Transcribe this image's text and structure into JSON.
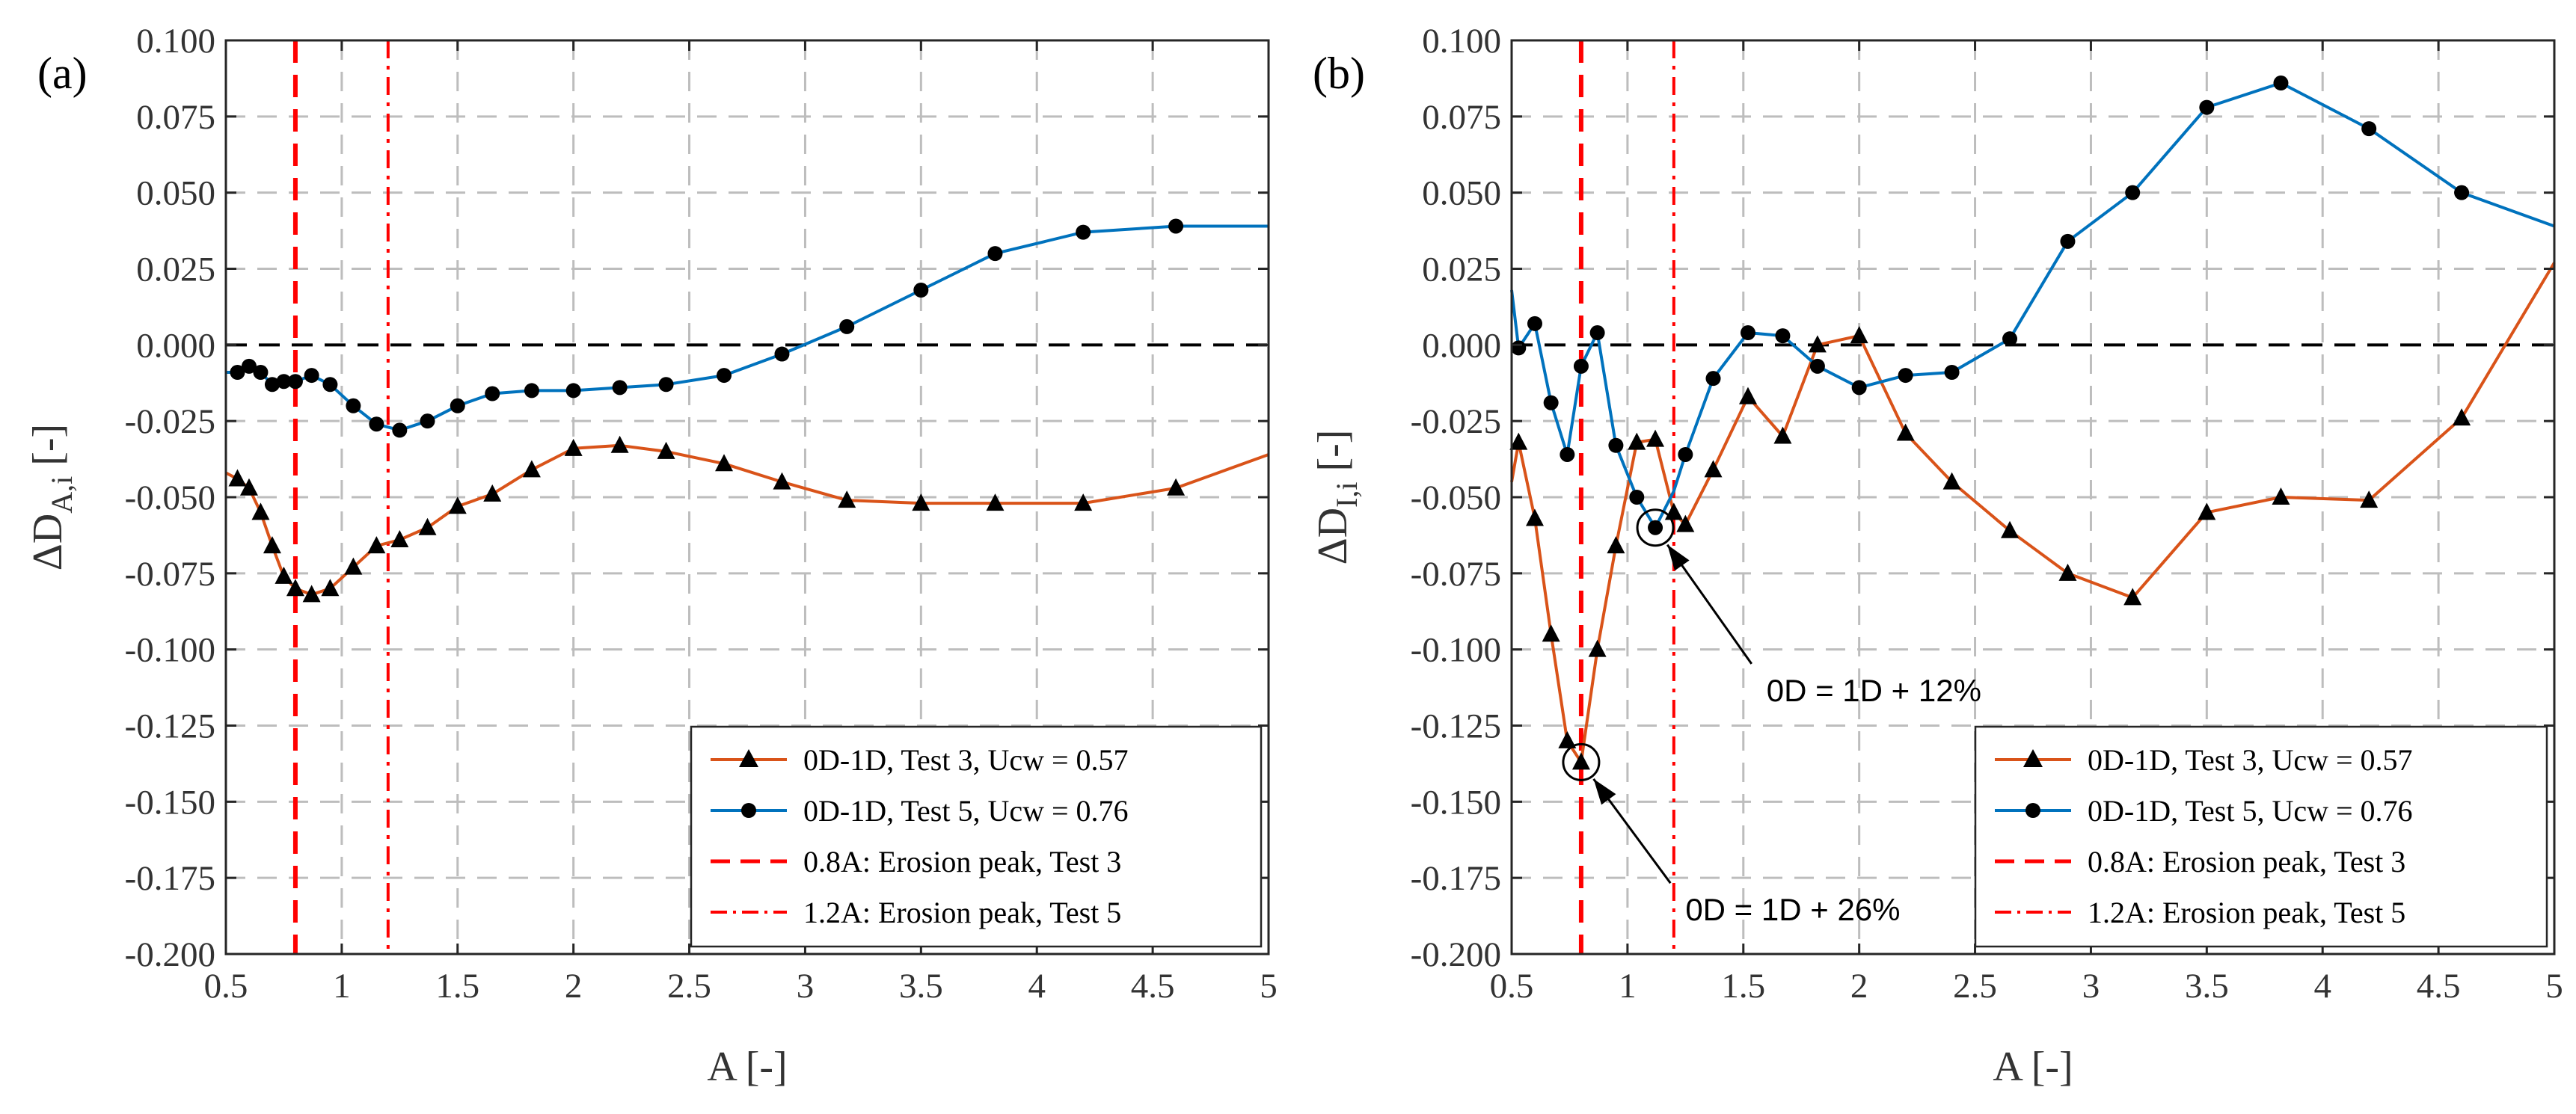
{
  "chart_data": [
    {
      "type": "line",
      "panel_label": "(a)",
      "xlabel": "A [-]",
      "ylabel": "ΔD",
      "ylabel_sub": "A,i",
      "ylabel_unit": "[-]",
      "xlim": [
        0.5,
        5
      ],
      "ylim": [
        -0.2,
        0.1
      ],
      "xticks": [
        0.5,
        1,
        1.5,
        2,
        2.5,
        3,
        3.5,
        4,
        4.5,
        5
      ],
      "xtick_labels": [
        "0.5",
        "1",
        "1.5",
        "2",
        "2.5",
        "3",
        "3.5",
        "4",
        "4.5",
        "5"
      ],
      "yticks": [
        0.1,
        0.075,
        0.05,
        0.025,
        0,
        -0.025,
        -0.05,
        -0.075,
        -0.1,
        -0.125,
        -0.15,
        -0.175,
        -0.2
      ],
      "ytick_labels": [
        "0.100",
        "0.075",
        "0.050",
        "0.025",
        "0.000",
        "-0.025",
        "-0.050",
        "-0.075",
        "-0.100",
        "-0.125",
        "-0.150",
        "-0.175",
        "-0.200"
      ],
      "grid": true,
      "legend_position": "bottom-right",
      "series": [
        {
          "name": "0D-1D, Test 3, Ucw = 0.57",
          "color": "#d95319",
          "marker": "triangle",
          "line_x": [
            0.5,
            0.55,
            0.6,
            0.65,
            0.7,
            0.75,
            0.8,
            0.87,
            0.95,
            1.05,
            1.15,
            1.25,
            1.37,
            1.5,
            1.65,
            1.82,
            2.0,
            2.2,
            2.4,
            2.65,
            2.9,
            3.18,
            3.5,
            3.82,
            4.2,
            4.6,
            5.0
          ],
          "line_y": [
            -0.042,
            -0.044,
            -0.047,
            -0.055,
            -0.066,
            -0.076,
            -0.08,
            -0.082,
            -0.08,
            -0.073,
            -0.066,
            -0.064,
            -0.06,
            -0.053,
            -0.049,
            -0.041,
            -0.034,
            -0.033,
            -0.035,
            -0.039,
            -0.045,
            -0.051,
            -0.052,
            -0.052,
            -0.052,
            -0.047,
            -0.036
          ],
          "marker_x": [
            0.55,
            0.6,
            0.65,
            0.7,
            0.75,
            0.8,
            0.87,
            0.95,
            1.05,
            1.15,
            1.25,
            1.37,
            1.5,
            1.65,
            1.82,
            2.0,
            2.2,
            2.4,
            2.65,
            2.9,
            3.18,
            3.5,
            3.82,
            4.2,
            4.6
          ],
          "marker_y": [
            -0.044,
            -0.047,
            -0.055,
            -0.066,
            -0.076,
            -0.08,
            -0.082,
            -0.08,
            -0.073,
            -0.066,
            -0.064,
            -0.06,
            -0.053,
            -0.049,
            -0.041,
            -0.034,
            -0.033,
            -0.035,
            -0.039,
            -0.045,
            -0.051,
            -0.052,
            -0.052,
            -0.052,
            -0.047
          ]
        },
        {
          "name": "0D-1D, Test 5, Ucw = 0.76",
          "color": "#0072bd",
          "marker": "circle",
          "line_x": [
            0.5,
            0.55,
            0.6,
            0.65,
            0.7,
            0.75,
            0.8,
            0.87,
            0.95,
            1.05,
            1.15,
            1.25,
            1.37,
            1.5,
            1.65,
            1.82,
            2.0,
            2.2,
            2.4,
            2.65,
            2.9,
            3.18,
            3.5,
            3.82,
            4.2,
            4.6,
            5.0
          ],
          "line_y": [
            -0.009,
            -0.009,
            -0.007,
            -0.009,
            -0.013,
            -0.012,
            -0.012,
            -0.01,
            -0.013,
            -0.02,
            -0.026,
            -0.028,
            -0.025,
            -0.02,
            -0.016,
            -0.015,
            -0.015,
            -0.014,
            -0.013,
            -0.01,
            -0.003,
            0.006,
            0.018,
            0.03,
            0.037,
            0.039,
            0.039
          ],
          "marker_x": [
            0.55,
            0.6,
            0.65,
            0.7,
            0.75,
            0.8,
            0.87,
            0.95,
            1.05,
            1.15,
            1.25,
            1.37,
            1.5,
            1.65,
            1.82,
            2.0,
            2.2,
            2.4,
            2.65,
            2.9,
            3.18,
            3.5,
            3.82,
            4.2,
            4.6
          ],
          "marker_y": [
            -0.009,
            -0.007,
            -0.009,
            -0.013,
            -0.012,
            -0.012,
            -0.01,
            -0.013,
            -0.02,
            -0.026,
            -0.028,
            -0.025,
            -0.02,
            -0.016,
            -0.015,
            -0.015,
            -0.014,
            -0.013,
            -0.01,
            -0.003,
            0.006,
            0.018,
            0.03,
            0.037,
            0.039
          ]
        },
        {
          "name": "0.8A: Erosion peak, Test 3",
          "color": "#ff0000",
          "style": "dashed",
          "vline_x": 0.8
        },
        {
          "name": "1.2A: Erosion peak, Test 5",
          "color": "#ff0000",
          "style": "dashdot",
          "vline_x": 1.2
        }
      ],
      "annotations": []
    },
    {
      "type": "line",
      "panel_label": "(b)",
      "xlabel": "A [-]",
      "ylabel": "ΔD",
      "ylabel_sub": "I,i",
      "ylabel_unit": "[-]",
      "xlim": [
        0.5,
        5
      ],
      "ylim": [
        -0.2,
        0.1
      ],
      "xticks": [
        0.5,
        1,
        1.5,
        2,
        2.5,
        3,
        3.5,
        4,
        4.5,
        5
      ],
      "xtick_labels": [
        "0.5",
        "1",
        "1.5",
        "2",
        "2.5",
        "3",
        "3.5",
        "4",
        "4.5",
        "5"
      ],
      "yticks": [
        0.1,
        0.075,
        0.05,
        0.025,
        0,
        -0.025,
        -0.05,
        -0.075,
        -0.1,
        -0.125,
        -0.15,
        -0.175,
        -0.2
      ],
      "ytick_labels": [
        "0.100",
        "0.075",
        "0.050",
        "0.025",
        "0.000",
        "-0.025",
        "-0.050",
        "-0.075",
        "-0.100",
        "-0.125",
        "-0.150",
        "-0.175",
        "-0.200"
      ],
      "grid": true,
      "legend_position": "bottom-right",
      "series": [
        {
          "name": "0D-1D, Test 3, Ucw = 0.57",
          "color": "#d95319",
          "marker": "triangle",
          "line_x": [
            0.5,
            0.53,
            0.6,
            0.67,
            0.74,
            0.8,
            0.87,
            0.95,
            1.04,
            1.12,
            1.2,
            1.25,
            1.37,
            1.52,
            1.67,
            1.82,
            2.0,
            2.2,
            2.4,
            2.65,
            2.9,
            3.18,
            3.5,
            3.82,
            4.2,
            4.6,
            5.0
          ],
          "line_y": [
            -0.045,
            -0.032,
            -0.057,
            -0.095,
            -0.13,
            -0.137,
            -0.1,
            -0.066,
            -0.032,
            -0.031,
            -0.055,
            -0.059,
            -0.041,
            -0.017,
            -0.03,
            0.0,
            0.003,
            -0.029,
            -0.045,
            -0.061,
            -0.075,
            -0.083,
            -0.055,
            -0.05,
            -0.051,
            -0.024,
            0.027
          ],
          "marker_x": [
            0.53,
            0.6,
            0.67,
            0.74,
            0.8,
            0.87,
            0.95,
            1.04,
            1.12,
            1.2,
            1.25,
            1.37,
            1.52,
            1.67,
            1.82,
            2.0,
            2.2,
            2.4,
            2.65,
            2.9,
            3.18,
            3.5,
            3.82,
            4.2,
            4.6
          ],
          "marker_y": [
            -0.032,
            -0.057,
            -0.095,
            -0.13,
            -0.137,
            -0.1,
            -0.066,
            -0.032,
            -0.031,
            -0.055,
            -0.059,
            -0.041,
            -0.017,
            -0.03,
            0.0,
            0.003,
            -0.029,
            -0.045,
            -0.061,
            -0.075,
            -0.083,
            -0.055,
            -0.05,
            -0.051,
            -0.024
          ]
        },
        {
          "name": "0D-1D, Test 5, Ucw = 0.76",
          "color": "#0072bd",
          "marker": "circle",
          "line_x": [
            0.5,
            0.53,
            0.6,
            0.67,
            0.74,
            0.8,
            0.87,
            0.95,
            1.04,
            1.12,
            1.2,
            1.25,
            1.37,
            1.52,
            1.67,
            1.82,
            2.0,
            2.2,
            2.4,
            2.65,
            2.9,
            3.18,
            3.5,
            3.82,
            4.2,
            4.6,
            5.0
          ],
          "line_y": [
            0.018,
            -0.001,
            0.007,
            -0.019,
            -0.036,
            -0.007,
            0.004,
            -0.033,
            -0.05,
            -0.06,
            -0.048,
            -0.036,
            -0.011,
            0.004,
            0.003,
            -0.007,
            -0.014,
            -0.01,
            -0.009,
            0.002,
            0.034,
            0.05,
            0.078,
            0.086,
            0.071,
            0.05,
            0.039
          ],
          "marker_x": [
            0.53,
            0.6,
            0.67,
            0.74,
            0.8,
            0.87,
            0.95,
            1.04,
            1.12,
            1.25,
            1.37,
            1.52,
            1.67,
            1.82,
            2.0,
            2.2,
            2.4,
            2.65,
            2.9,
            3.18,
            3.5,
            3.82,
            4.2,
            4.6
          ],
          "marker_y": [
            -0.001,
            0.007,
            -0.019,
            -0.036,
            -0.007,
            0.004,
            -0.033,
            -0.05,
            -0.06,
            -0.036,
            -0.011,
            0.004,
            0.003,
            -0.007,
            -0.014,
            -0.01,
            -0.009,
            0.002,
            0.034,
            0.05,
            0.078,
            0.086,
            0.071,
            0.05
          ]
        },
        {
          "name": "0.8A: Erosion peak, Test 3",
          "color": "#ff0000",
          "style": "dashed",
          "vline_x": 0.8
        },
        {
          "name": "1.2A: Erosion peak, Test 5",
          "color": "#ff0000",
          "style": "dashdot",
          "vline_x": 1.2
        }
      ],
      "annotations": [
        {
          "text": "0D = 1D + 12%",
          "point_x": 1.12,
          "point_y": -0.06,
          "text_x": 1.6,
          "text_y": -0.117
        },
        {
          "text": "0D = 1D + 26%",
          "point_x": 0.8,
          "point_y": -0.137,
          "text_x": 1.25,
          "text_y": -0.189
        }
      ]
    }
  ]
}
